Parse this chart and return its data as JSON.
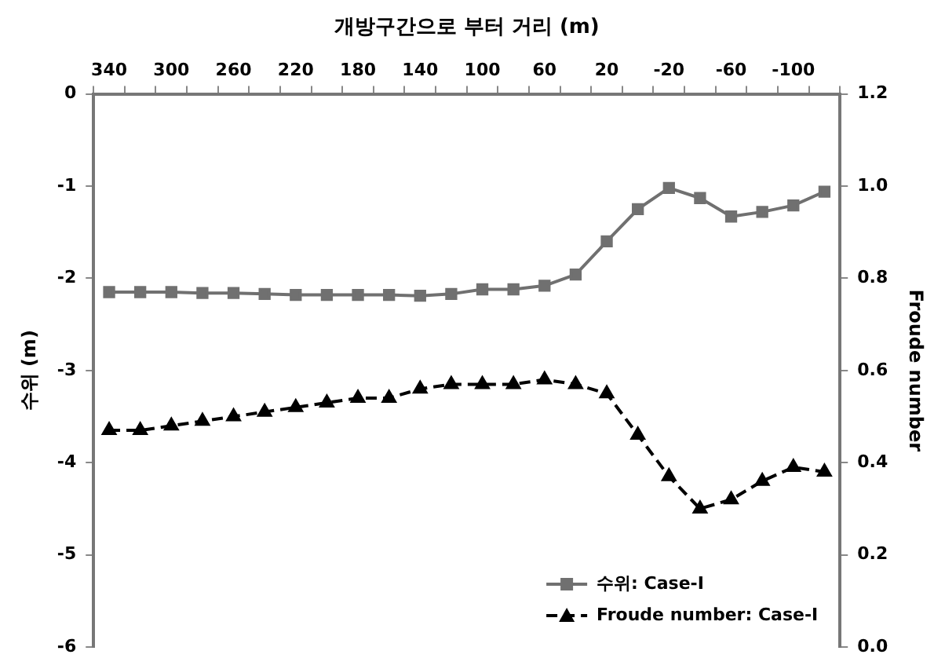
{
  "chart_data": {
    "type": "line",
    "xlabel": "개방구간으로 부터 거리 (m)",
    "ylabel": "수위 (m)",
    "y2label": "Froude number",
    "categories": [
      "340",
      null,
      "300",
      null,
      "260",
      null,
      "220",
      null,
      "180",
      null,
      "140",
      null,
      "100",
      null,
      "60",
      null,
      "20",
      null,
      "-20",
      null,
      "-60",
      null,
      "-100",
      null
    ],
    "series": [
      {
        "name": "수위: Case-I",
        "color": "#707070",
        "marker": "square",
        "line_style": "solid",
        "values": [
          -2.15,
          -2.15,
          -2.15,
          -2.16,
          -2.16,
          -2.17,
          -2.18,
          -2.18,
          -2.18,
          -2.18,
          -2.19,
          -2.17,
          -2.12,
          -2.12,
          -2.08,
          -1.96,
          -1.6,
          -1.25,
          -1.02,
          -1.13,
          -1.33,
          -1.28,
          -1.21,
          -1.06
        ]
      },
      {
        "name": "Froude number: Case-I",
        "color": "#000000",
        "marker": "triangle",
        "line_style": "dashed",
        "axis": "y2",
        "values": [
          0.47,
          0.47,
          0.48,
          0.49,
          0.5,
          0.51,
          0.52,
          0.53,
          0.54,
          0.54,
          0.56,
          0.57,
          0.57,
          0.57,
          0.58,
          0.57,
          0.55,
          0.46,
          0.37,
          0.3,
          0.32,
          0.36,
          0.39,
          0.38
        ]
      }
    ],
    "ylim": [
      -6,
      0
    ],
    "yticks": [
      -6,
      -5,
      -4,
      -3,
      -2,
      -1,
      0
    ],
    "y2lim": [
      0,
      1.2
    ],
    "y2ticks": [
      {
        "value": 0,
        "label": "0.0"
      },
      {
        "value": 0.2,
        "label": "0.2"
      },
      {
        "value": 0.4,
        "label": "0.4"
      },
      {
        "value": 0.6,
        "label": "0.6"
      },
      {
        "value": 0.8,
        "label": "0.8"
      },
      {
        "value": 1,
        "label": "1.0"
      },
      {
        "value": 1.2,
        "label": "1.2"
      }
    ],
    "grid": false,
    "legend": "bottom right"
  }
}
